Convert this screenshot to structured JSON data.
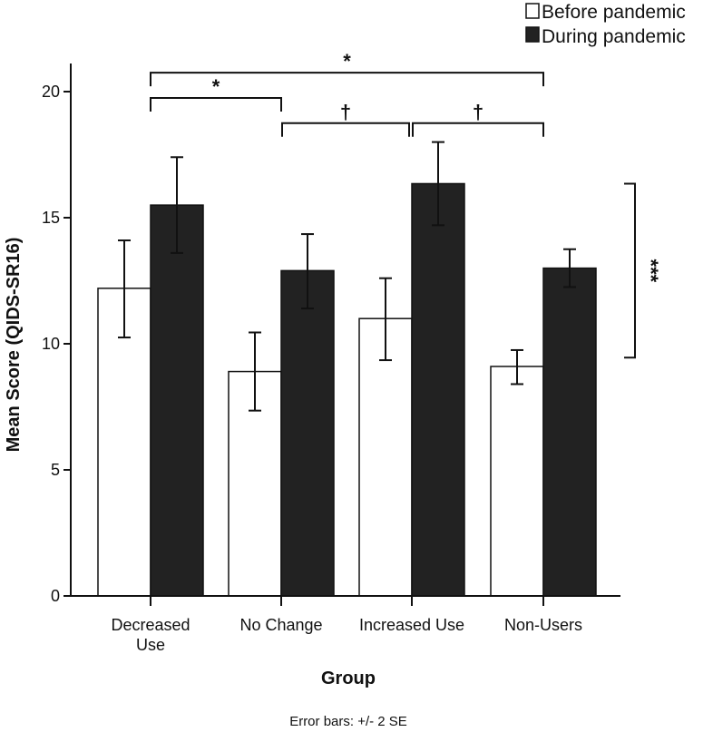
{
  "chart_data": {
    "type": "bar",
    "title": "",
    "xlabel": "Group",
    "ylabel": "Mean Score (QIDS-SR16)",
    "ylim": [
      0,
      20
    ],
    "yticks": [
      "0",
      "5",
      "10",
      "15",
      "20"
    ],
    "categories": [
      [
        "Decreased",
        "Use"
      ],
      [
        "No Change"
      ],
      [
        "Increased Use"
      ],
      [
        "Non-Users"
      ]
    ],
    "series": [
      {
        "name": "Before pandemic",
        "color": "#ffffff",
        "values": [
          12.2,
          8.9,
          11.0,
          9.1
        ],
        "err_high": [
          14.1,
          10.45,
          12.6,
          9.75
        ],
        "err_low": [
          10.25,
          7.35,
          9.35,
          8.4
        ]
      },
      {
        "name": "During pandemic",
        "color": "#222222",
        "values": [
          15.5,
          12.9,
          16.35,
          13.0
        ],
        "err_high": [
          17.4,
          14.35,
          18.0,
          13.75
        ],
        "err_low": [
          13.6,
          11.4,
          14.7,
          12.25
        ]
      }
    ],
    "legend": "top-right",
    "grid": false,
    "footnote": "Error bars: +/- 2 SE",
    "significance": [
      {
        "from": 0,
        "to": 3,
        "level": 20.75,
        "label": "*"
      },
      {
        "from": 0,
        "to": 1,
        "level": 19.75,
        "label": "*"
      },
      {
        "from": 1,
        "to": 2,
        "level": 18.75,
        "label": "†"
      },
      {
        "from": 2,
        "to": 3,
        "level": 18.75,
        "label": "†"
      },
      {
        "side": "right",
        "from_value": 9.45,
        "to_value": 16.35,
        "label": "***"
      }
    ]
  }
}
